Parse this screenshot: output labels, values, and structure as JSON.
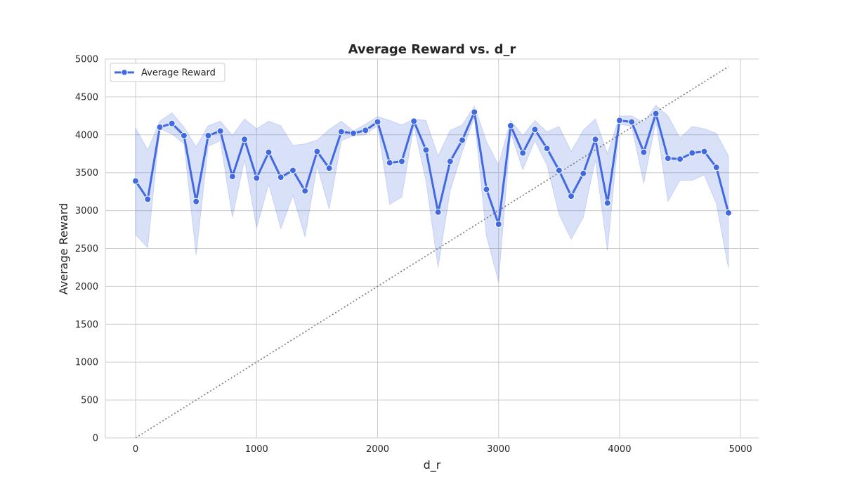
{
  "chart_data": {
    "type": "line",
    "title": "Average Reward vs. d_r",
    "xlabel": "d_r",
    "ylabel": "Average Reward",
    "xlim": [
      -250,
      5150
    ],
    "ylim": [
      0,
      5000
    ],
    "xticks": [
      0,
      1000,
      2000,
      3000,
      4000,
      5000
    ],
    "yticks": [
      0,
      500,
      1000,
      1500,
      2000,
      2500,
      3000,
      3500,
      4000,
      4500,
      5000
    ],
    "grid": true,
    "legend": {
      "position": "top-left",
      "entries": [
        "Average Reward"
      ]
    },
    "colors": {
      "line": "#4169e1",
      "band": "#4169e1",
      "reference": "#777777"
    },
    "x": [
      0,
      100,
      200,
      300,
      400,
      500,
      600,
      700,
      800,
      900,
      1000,
      1100,
      1200,
      1300,
      1400,
      1500,
      1600,
      1700,
      1800,
      1900,
      2000,
      2100,
      2200,
      2300,
      2400,
      2500,
      2600,
      2700,
      2800,
      2900,
      3000,
      3100,
      3200,
      3300,
      3400,
      3500,
      3600,
      3700,
      3800,
      3900,
      4000,
      4100,
      4200,
      4300,
      4400,
      4500,
      4600,
      4700,
      4800,
      4900
    ],
    "series": [
      {
        "name": "Average Reward",
        "values": [
          3390,
          3150,
          4100,
          4150,
          3990,
          3120,
          3990,
          4050,
          3450,
          3940,
          3430,
          3770,
          3440,
          3530,
          3260,
          3780,
          3560,
          4040,
          4020,
          4060,
          4170,
          3630,
          3650,
          4180,
          3800,
          2980,
          3650,
          3930,
          4300,
          3280,
          2820,
          4120,
          3760,
          4070,
          3820,
          3530,
          3190,
          3490,
          3940,
          3100,
          4190,
          4170,
          3770,
          4280,
          3690,
          3680,
          3760,
          3780,
          3570,
          2970
        ],
        "lower": [
          2680,
          2510,
          4080,
          4010,
          3880,
          2410,
          3850,
          3920,
          2910,
          3670,
          2770,
          3350,
          2760,
          3200,
          2650,
          3590,
          3020,
          3920,
          3990,
          4000,
          4120,
          3080,
          3180,
          4120,
          3390,
          2250,
          3260,
          3780,
          4230,
          2660,
          2060,
          4030,
          3540,
          3920,
          3600,
          2950,
          2620,
          2910,
          3670,
          2470,
          4140,
          4110,
          3360,
          4180,
          3120,
          3400,
          3400,
          3470,
          3090,
          2240
        ],
        "upper": [
          4090,
          3800,
          4180,
          4290,
          4100,
          3840,
          4120,
          4180,
          3990,
          4210,
          4080,
          4180,
          4120,
          3860,
          3880,
          3930,
          4070,
          4180,
          4050,
          4140,
          4240,
          4190,
          4130,
          4210,
          4190,
          3720,
          4060,
          4130,
          4380,
          3910,
          3600,
          4190,
          3990,
          4190,
          4040,
          4110,
          3780,
          4060,
          4210,
          3750,
          4250,
          4250,
          4160,
          4390,
          4250,
          3960,
          4110,
          4080,
          4020,
          3720
        ]
      }
    ],
    "reference_line": {
      "x": [
        0,
        4900
      ],
      "y": [
        0,
        4900
      ],
      "style": "dotted"
    }
  }
}
